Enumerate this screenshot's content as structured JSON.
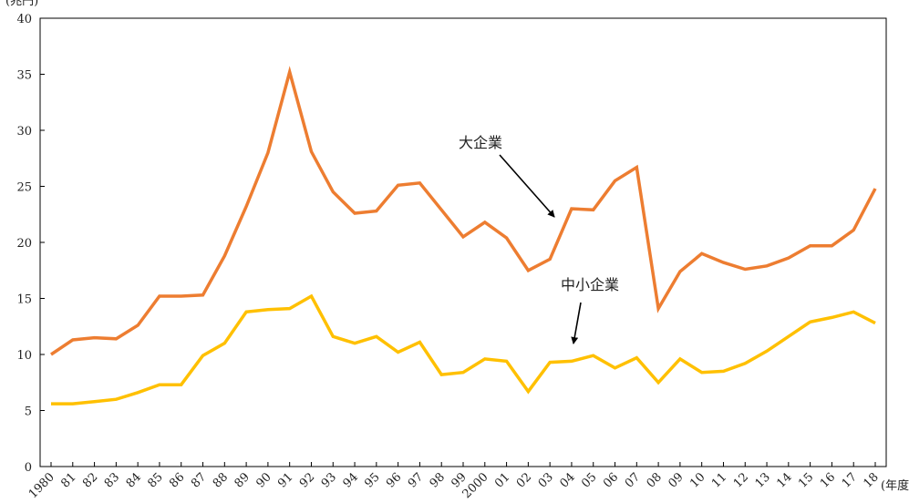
{
  "chart_data": {
    "type": "line",
    "title": "",
    "ylabel": "(兆円)",
    "xlabel": "(年度)",
    "ylim": [
      0,
      40
    ],
    "yticks": [
      0,
      5,
      10,
      15,
      20,
      25,
      30,
      35,
      40
    ],
    "grid": false,
    "legend": "none",
    "categories": [
      "1980",
      "81",
      "82",
      "83",
      "84",
      "85",
      "86",
      "87",
      "88",
      "89",
      "90",
      "91",
      "92",
      "93",
      "94",
      "95",
      "96",
      "97",
      "98",
      "99",
      "2000",
      "01",
      "02",
      "03",
      "04",
      "05",
      "06",
      "07",
      "08",
      "09",
      "10",
      "11",
      "12",
      "13",
      "14",
      "15",
      "16",
      "17",
      "18"
    ],
    "series": [
      {
        "name": "大企業",
        "color": "#ed7d31",
        "values": [
          10.0,
          11.3,
          11.5,
          11.4,
          12.6,
          15.2,
          15.2,
          15.3,
          18.8,
          23.2,
          28.0,
          35.2,
          28.1,
          24.5,
          22.6,
          22.8,
          25.1,
          25.3,
          22.9,
          20.5,
          21.8,
          20.4,
          17.5,
          18.5,
          23.0,
          22.9,
          25.5,
          26.7,
          14.1,
          17.4,
          19.0,
          18.2,
          17.6,
          17.9,
          18.6,
          19.7,
          19.7,
          21.1,
          24.8
        ]
      },
      {
        "name": "中小企業",
        "color": "#ffc000",
        "values": [
          5.6,
          5.6,
          5.8,
          6.0,
          6.6,
          7.3,
          7.3,
          9.9,
          11.0,
          13.8,
          14.0,
          14.1,
          15.2,
          11.6,
          11.0,
          11.6,
          10.2,
          11.1,
          8.2,
          8.4,
          9.6,
          9.4,
          6.7,
          9.3,
          9.4,
          9.9,
          8.8,
          9.7,
          7.5,
          9.6,
          8.4,
          8.5,
          9.2,
          10.3,
          11.6,
          12.9,
          13.3,
          13.8,
          12.8
        ]
      }
    ]
  }
}
